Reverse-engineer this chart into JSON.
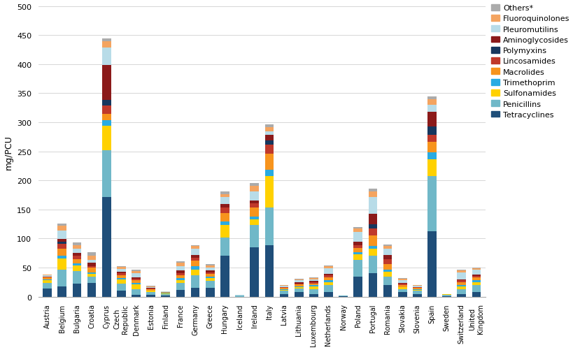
{
  "countries": [
    "Austria",
    "Belgium",
    "Bulgaria",
    "Croatia",
    "Cyprus",
    "Czech\nRepublic",
    "Denmark",
    "Estonia",
    "Finland",
    "France",
    "Germany",
    "Greece",
    "Hungary",
    "Iceland",
    "Ireland",
    "Italy",
    "Latvia",
    "Lithuania",
    "Luxembourg",
    "Netherlands",
    "Norway",
    "Poland",
    "Portugal",
    "Romania",
    "Slovakia",
    "Slovenia",
    "Spain",
    "Sweden",
    "Switzerland",
    "United\nKingdom"
  ],
  "classes": [
    "Tetracyclines",
    "Penicillins",
    "Sulfonamides",
    "Trimethoprim",
    "Macrolides",
    "Lincosamides",
    "Polymyxins",
    "Aminoglycosides",
    "Pleuromutilins",
    "Fluoroquinolones",
    "Others*"
  ],
  "colors": [
    "#1F4E79",
    "#70B8C8",
    "#FFD100",
    "#29ABE2",
    "#F7941D",
    "#C0392B",
    "#17375E",
    "#8B1A1A",
    "#B8DCE8",
    "#F4A460",
    "#ABABAB"
  ],
  "data": {
    "Austria": [
      14,
      10,
      4,
      2,
      3,
      1,
      0,
      1,
      2,
      1,
      0
    ],
    "Belgium": [
      18,
      28,
      20,
      5,
      12,
      8,
      3,
      5,
      15,
      8,
      4
    ],
    "Bulgaria": [
      22,
      22,
      10,
      3,
      8,
      5,
      0,
      5,
      8,
      5,
      5
    ],
    "Croatia": [
      24,
      10,
      5,
      3,
      8,
      3,
      0,
      5,
      5,
      8,
      5
    ],
    "Cyprus": [
      172,
      80,
      42,
      10,
      10,
      15,
      10,
      60,
      30,
      10,
      5
    ],
    "Czech\nRepublic": [
      10,
      12,
      8,
      2,
      5,
      3,
      0,
      3,
      5,
      3,
      2
    ],
    "Denmark": [
      3,
      10,
      8,
      3,
      5,
      2,
      0,
      2,
      8,
      3,
      3
    ],
    "Estonia": [
      3,
      5,
      2,
      1,
      2,
      1,
      0,
      1,
      2,
      1,
      1
    ],
    "Finland": [
      2,
      3,
      1,
      1,
      1,
      0,
      0,
      0,
      1,
      0,
      0
    ],
    "France": [
      12,
      12,
      5,
      3,
      5,
      4,
      0,
      4,
      8,
      5,
      3
    ],
    "Germany": [
      15,
      22,
      10,
      5,
      10,
      5,
      0,
      5,
      10,
      5,
      2
    ],
    "Greece": [
      15,
      12,
      5,
      2,
      5,
      3,
      0,
      3,
      5,
      4,
      2
    ],
    "Hungary": [
      70,
      32,
      22,
      5,
      15,
      10,
      0,
      5,
      12,
      5,
      5
    ],
    "Iceland": [
      0,
      2,
      0,
      0,
      0,
      0,
      0,
      0,
      1,
      0,
      0
    ],
    "Ireland": [
      85,
      38,
      10,
      5,
      15,
      8,
      0,
      5,
      15,
      10,
      5
    ],
    "Italy": [
      88,
      65,
      55,
      10,
      28,
      15,
      8,
      10,
      5,
      8,
      5
    ],
    "Latvia": [
      5,
      5,
      2,
      1,
      2,
      1,
      0,
      1,
      2,
      1,
      0
    ],
    "Lithuania": [
      8,
      6,
      3,
      1,
      3,
      2,
      0,
      2,
      3,
      2,
      1
    ],
    "Luxembourg": [
      5,
      8,
      5,
      2,
      3,
      2,
      0,
      2,
      3,
      2,
      1
    ],
    "Netherlands": [
      8,
      12,
      5,
      3,
      5,
      4,
      0,
      2,
      10,
      3,
      2
    ],
    "Norway": [
      1,
      1,
      0,
      0,
      0,
      0,
      0,
      0,
      0,
      0,
      0
    ],
    "Poland": [
      35,
      28,
      10,
      3,
      8,
      5,
      0,
      5,
      18,
      5,
      3
    ],
    "Portugal": [
      40,
      30,
      12,
      5,
      18,
      12,
      8,
      18,
      28,
      10,
      5
    ],
    "Romania": [
      20,
      15,
      8,
      3,
      10,
      8,
      0,
      8,
      10,
      5,
      3
    ],
    "Slovakia": [
      8,
      5,
      3,
      1,
      3,
      2,
      0,
      2,
      5,
      2,
      1
    ],
    "Slovenia": [
      5,
      5,
      2,
      1,
      2,
      1,
      0,
      1,
      2,
      1,
      0
    ],
    "Spain": [
      113,
      95,
      28,
      12,
      18,
      12,
      15,
      25,
      12,
      10,
      5
    ],
    "Sweden": [
      1,
      2,
      1,
      0,
      0,
      0,
      0,
      0,
      1,
      0,
      0
    ],
    "Switzerland": [
      5,
      8,
      5,
      2,
      5,
      3,
      0,
      2,
      12,
      3,
      2
    ],
    "United\nKingdom": [
      8,
      12,
      5,
      3,
      5,
      3,
      0,
      2,
      8,
      3,
      1
    ]
  },
  "ylabel": "mg/PCU",
  "ylim": [
    0,
    500
  ],
  "yticks": [
    0,
    50,
    100,
    150,
    200,
    250,
    300,
    350,
    400,
    450,
    500
  ],
  "background_color": "#FFFFFF",
  "grid_color": "#D0D0D0"
}
